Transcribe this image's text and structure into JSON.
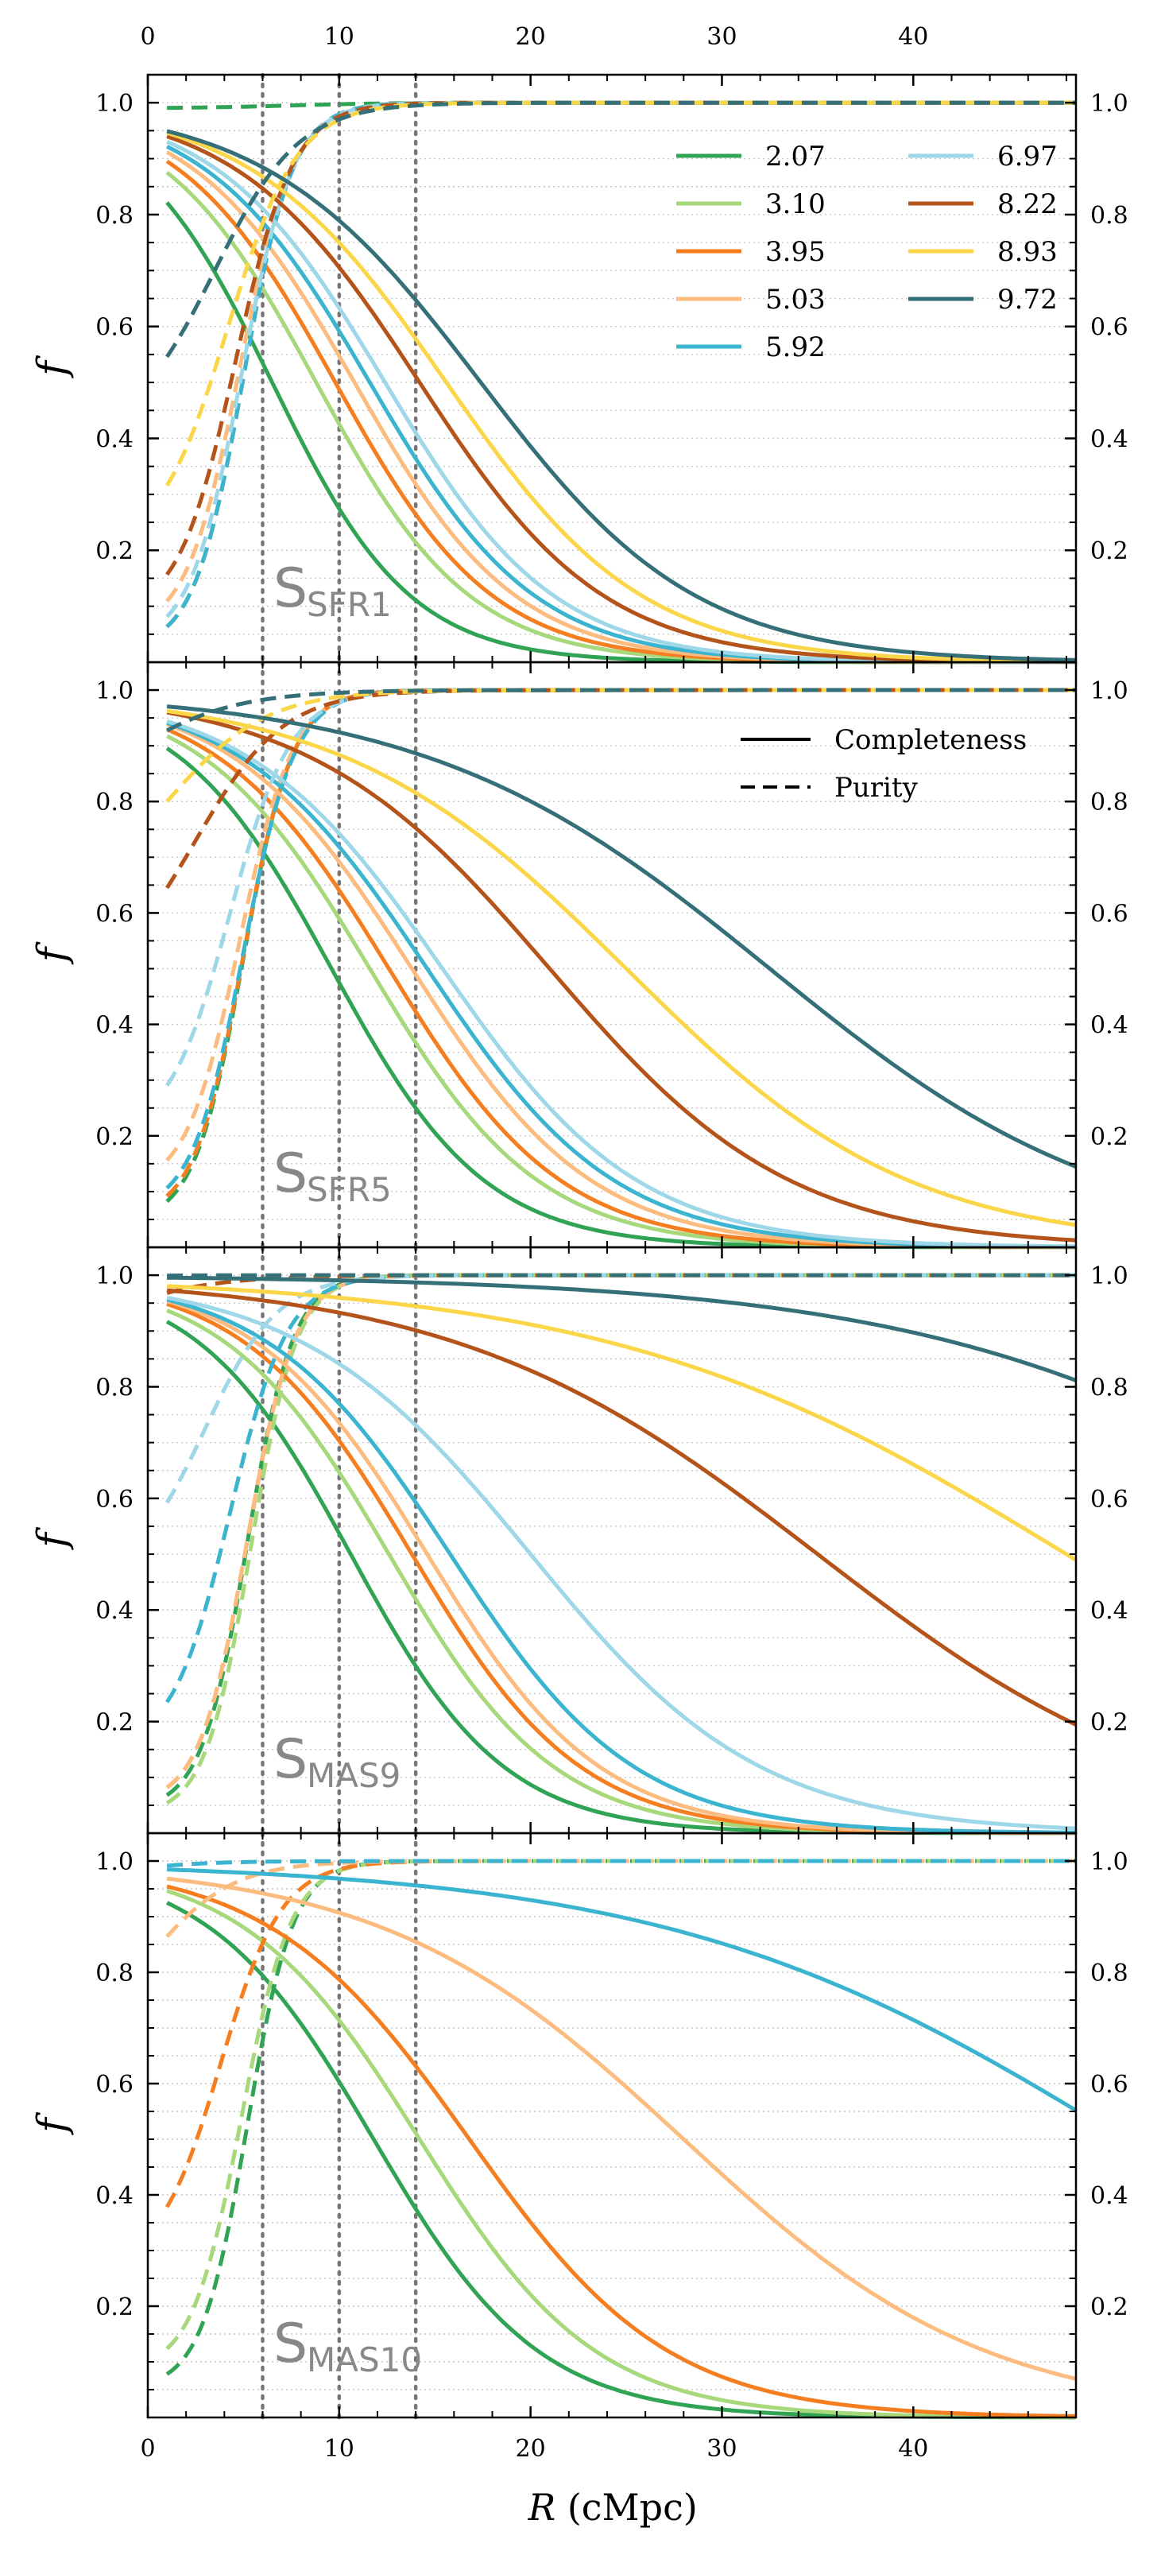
{
  "chart_data": {
    "type": "line",
    "xlabel_symbol": "R",
    "xlabel_unit": "(cMpc)",
    "ylabel": "f",
    "xlim": [
      0,
      48.5
    ],
    "ylim": [
      0,
      1.05
    ],
    "x_ticks": [
      0,
      10,
      20,
      30,
      40
    ],
    "x_tick_labels": [
      "0",
      "10",
      "20",
      "30",
      "40"
    ],
    "y_ticks": [
      0.2,
      0.4,
      0.6,
      0.8,
      1.0
    ],
    "y_tick_labels": [
      "0.2",
      "0.4",
      "0.6",
      "0.8",
      "1.0"
    ],
    "reference_lines_x": [
      6,
      10,
      14
    ],
    "grid": "horizontal dotted at 0.05 steps",
    "legend_redshift": {
      "placement": "top-right of first panel",
      "entries": [
        {
          "label": "2.07",
          "color": "#31a354"
        },
        {
          "label": "3.10",
          "color": "#a7d97c"
        },
        {
          "label": "3.95",
          "color": "#f57f20"
        },
        {
          "label": "5.03",
          "color": "#fdbc7f"
        },
        {
          "label": "5.92",
          "color": "#3bb4d0"
        },
        {
          "label": "6.97",
          "color": "#9ed7e8"
        },
        {
          "label": "8.22",
          "color": "#b5541a"
        },
        {
          "label": "8.93",
          "color": "#fbd648"
        },
        {
          "label": "9.72",
          "color": "#356f78"
        }
      ]
    },
    "legend_style": {
      "placement": "top-right of second panel",
      "entries": [
        {
          "label": "Completeness",
          "style": "solid"
        },
        {
          "label": "Purity",
          "style": "dashed"
        }
      ]
    },
    "panels": [
      {
        "label": "S",
        "label_sub": "SFR1",
        "series": [
          {
            "name": "2.07",
            "completeness": {
              "R50": 6.5,
              "k": 3.6
            },
            "purity": {
              "p0": 0.99,
              "R50": 7.4,
              "k": 2.6
            }
          },
          {
            "name": "3.10",
            "completeness": {
              "R50": 8.8,
              "k": 4.0
            },
            "purity": {
              "p0": 0.02,
              "R50": 5.0,
              "k": 1.3
            }
          },
          {
            "name": "3.95",
            "completeness": {
              "R50": 9.8,
              "k": 4.1
            },
            "purity": {
              "p0": 0.02,
              "R50": 5.0,
              "k": 1.3
            }
          },
          {
            "name": "5.03",
            "completeness": {
              "R50": 10.8,
              "k": 4.2
            },
            "purity": {
              "p0": 0.05,
              "R50": 4.8,
              "k": 1.4
            }
          },
          {
            "name": "5.92",
            "completeness": {
              "R50": 11.6,
              "k": 4.3
            },
            "purity": {
              "p0": 0.02,
              "R50": 5.0,
              "k": 1.3
            }
          },
          {
            "name": "6.97",
            "completeness": {
              "R50": 12.4,
              "k": 4.4
            },
            "purity": {
              "p0": 0.03,
              "R50": 4.9,
              "k": 1.35
            }
          },
          {
            "name": "8.22",
            "completeness": {
              "R50": 14.2,
              "k": 4.8
            },
            "purity": {
              "p0": 0.08,
              "R50": 4.6,
              "k": 1.5
            }
          },
          {
            "name": "8.93",
            "completeness": {
              "R50": 15.6,
              "k": 5.1
            },
            "purity": {
              "p0": 0.2,
              "R50": 4.2,
              "k": 1.8
            }
          },
          {
            "name": "9.72",
            "completeness": {
              "R50": 17.4,
              "k": 5.6
            },
            "purity": {
              "p0": 0.4,
              "R50": 3.5,
              "k": 2.2
            }
          }
        ]
      },
      {
        "label": "S",
        "label_sub": "SFR5",
        "series": [
          {
            "name": "2.07",
            "completeness": {
              "R50": 9.6,
              "k": 4.0
            },
            "purity": {
              "p0": 0.04,
              "R50": 5.0,
              "k": 1.3
            }
          },
          {
            "name": "3.10",
            "completeness": {
              "R50": 11.6,
              "k": 4.4
            },
            "purity": {
              "p0": 0.05,
              "R50": 5.0,
              "k": 1.3
            }
          },
          {
            "name": "3.95",
            "completeness": {
              "R50": 12.6,
              "k": 4.5
            },
            "purity": {
              "p0": 0.05,
              "R50": 5.0,
              "k": 1.3
            }
          },
          {
            "name": "5.03",
            "completeness": {
              "R50": 13.8,
              "k": 4.7
            },
            "purity": {
              "p0": 0.1,
              "R50": 4.8,
              "k": 1.4
            }
          },
          {
            "name": "5.92",
            "completeness": {
              "R50": 14.6,
              "k": 4.9
            },
            "purity": {
              "p0": 0.06,
              "R50": 5.0,
              "k": 1.35
            }
          },
          {
            "name": "6.97",
            "completeness": {
              "R50": 15.4,
              "k": 5.1
            },
            "purity": {
              "p0": 0.2,
              "R50": 4.3,
              "k": 1.6
            }
          },
          {
            "name": "8.22",
            "completeness": {
              "R50": 21.0,
              "k": 6.3
            },
            "purity": {
              "p0": 0.46,
              "R50": 2.5,
              "k": 2.3
            }
          },
          {
            "name": "8.93",
            "completeness": {
              "R50": 25.0,
              "k": 7.4
            },
            "purity": {
              "p0": 0.6,
              "R50": 1.0,
              "k": 2.6
            }
          },
          {
            "name": "9.72",
            "completeness": {
              "R50": 32.5,
              "k": 9.0
            },
            "purity": {
              "p0": 0.73,
              "R50": -2.0,
              "k": 3.0
            }
          }
        ]
      },
      {
        "label": "S",
        "label_sub": "MAS9",
        "series": [
          {
            "name": "2.07",
            "completeness": {
              "R50": 10.6,
              "k": 4.0
            },
            "purity": {
              "p0": 0.04,
              "R50": 5.2,
              "k": 1.2
            }
          },
          {
            "name": "3.10",
            "completeness": {
              "R50": 12.6,
              "k": 4.3
            },
            "purity": {
              "p0": 0.03,
              "R50": 5.4,
              "k": 1.2
            }
          },
          {
            "name": "3.95",
            "completeness": {
              "R50": 13.8,
              "k": 4.4
            },
            "purity": {
              "p0": 0.05,
              "R50": 5.2,
              "k": 1.25
            }
          },
          {
            "name": "5.03",
            "completeness": {
              "R50": 14.6,
              "k": 4.5
            },
            "purity": {
              "p0": 0.05,
              "R50": 5.2,
              "k": 1.25
            }
          },
          {
            "name": "5.92",
            "completeness": {
              "R50": 15.8,
              "k": 4.8
            },
            "purity": {
              "p0": 0.15,
              "R50": 4.3,
              "k": 1.5
            }
          },
          {
            "name": "6.97",
            "completeness": {
              "R50": 20.0,
              "k": 6.0
            },
            "purity": {
              "p0": 0.45,
              "R50": 3.0,
              "k": 1.9
            }
          },
          {
            "name": "8.22",
            "completeness": {
              "R50": 35.0,
              "k": 9.5
            },
            "purity": {
              "p0": 0.8,
              "R50": -4.0,
              "k": 3.0
            }
          },
          {
            "name": "8.93",
            "completeness": {
              "R50": 48.0,
              "k": 12.0
            },
            "purity": {
              "p0": 0.9,
              "R50": -8.0,
              "k": 3.0
            }
          },
          {
            "name": "9.72",
            "completeness": {
              "R50": 66.0,
              "k": 12.0
            },
            "purity": {
              "p0": 0.945,
              "R50": -12.0,
              "k": 3.0
            }
          }
        ]
      },
      {
        "label": "S",
        "label_sub": "MAS10",
        "series": [
          {
            "name": "2.07",
            "completeness": {
              "R50": 11.8,
              "k": 4.3
            },
            "purity": {
              "p0": 0.05,
              "R50": 5.2,
              "k": 1.2
            }
          },
          {
            "name": "3.10",
            "completeness": {
              "R50": 14.2,
              "k": 4.6
            },
            "purity": {
              "p0": 0.08,
              "R50": 4.9,
              "k": 1.3
            }
          },
          {
            "name": "3.95",
            "completeness": {
              "R50": 16.8,
              "k": 5.2
            },
            "purity": {
              "p0": 0.27,
              "R50": 3.8,
              "k": 1.6
            }
          },
          {
            "name": "5.03",
            "completeness": {
              "R50": 28.0,
              "k": 7.9
            },
            "purity": {
              "p0": 0.65,
              "R50": 0.0,
              "k": 2.2
            }
          },
          {
            "name": "5.92",
            "completeness": {
              "R50": 51.0,
              "k": 12.0
            },
            "purity": {
              "p0": 0.865,
              "R50": -6.0,
              "k": 2.6
            }
          }
        ]
      }
    ]
  }
}
